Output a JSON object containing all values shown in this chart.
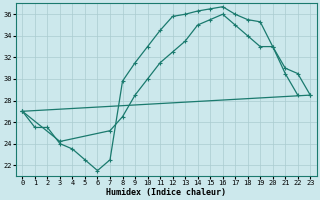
{
  "xlabel": "Humidex (Indice chaleur)",
  "xlim": [
    -0.5,
    23.5
  ],
  "ylim": [
    21,
    37
  ],
  "yticks": [
    22,
    24,
    26,
    28,
    30,
    32,
    34,
    36
  ],
  "xticks": [
    0,
    1,
    2,
    3,
    4,
    5,
    6,
    7,
    8,
    9,
    10,
    11,
    12,
    13,
    14,
    15,
    16,
    17,
    18,
    19,
    20,
    21,
    22,
    23
  ],
  "bg_color": "#cce8ec",
  "grid_color": "#aaccd0",
  "line_color": "#1a7a6e",
  "line1_x": [
    0,
    1,
    2,
    3,
    4,
    5,
    6,
    7,
    8,
    9,
    10,
    11,
    12,
    13,
    14,
    15,
    16,
    17,
    18,
    19,
    20,
    21,
    22
  ],
  "line1_y": [
    27.0,
    25.5,
    25.5,
    24.0,
    23.5,
    22.5,
    21.5,
    22.5,
    29.8,
    31.5,
    33.0,
    34.5,
    35.8,
    36.0,
    36.3,
    36.5,
    36.7,
    36.0,
    35.5,
    35.3,
    33.0,
    30.5,
    28.5
  ],
  "line2_x": [
    0,
    3,
    7,
    8,
    9,
    10,
    11,
    12,
    13,
    14,
    15,
    16,
    17,
    18,
    19,
    20,
    21,
    22,
    23
  ],
  "line2_y": [
    27.0,
    24.2,
    25.2,
    26.5,
    28.5,
    30.0,
    31.5,
    32.5,
    33.5,
    35.0,
    35.5,
    36.0,
    35.0,
    34.0,
    33.0,
    33.0,
    31.0,
    30.5,
    28.5
  ],
  "line3_x": [
    0,
    23
  ],
  "line3_y": [
    27.0,
    28.5
  ]
}
